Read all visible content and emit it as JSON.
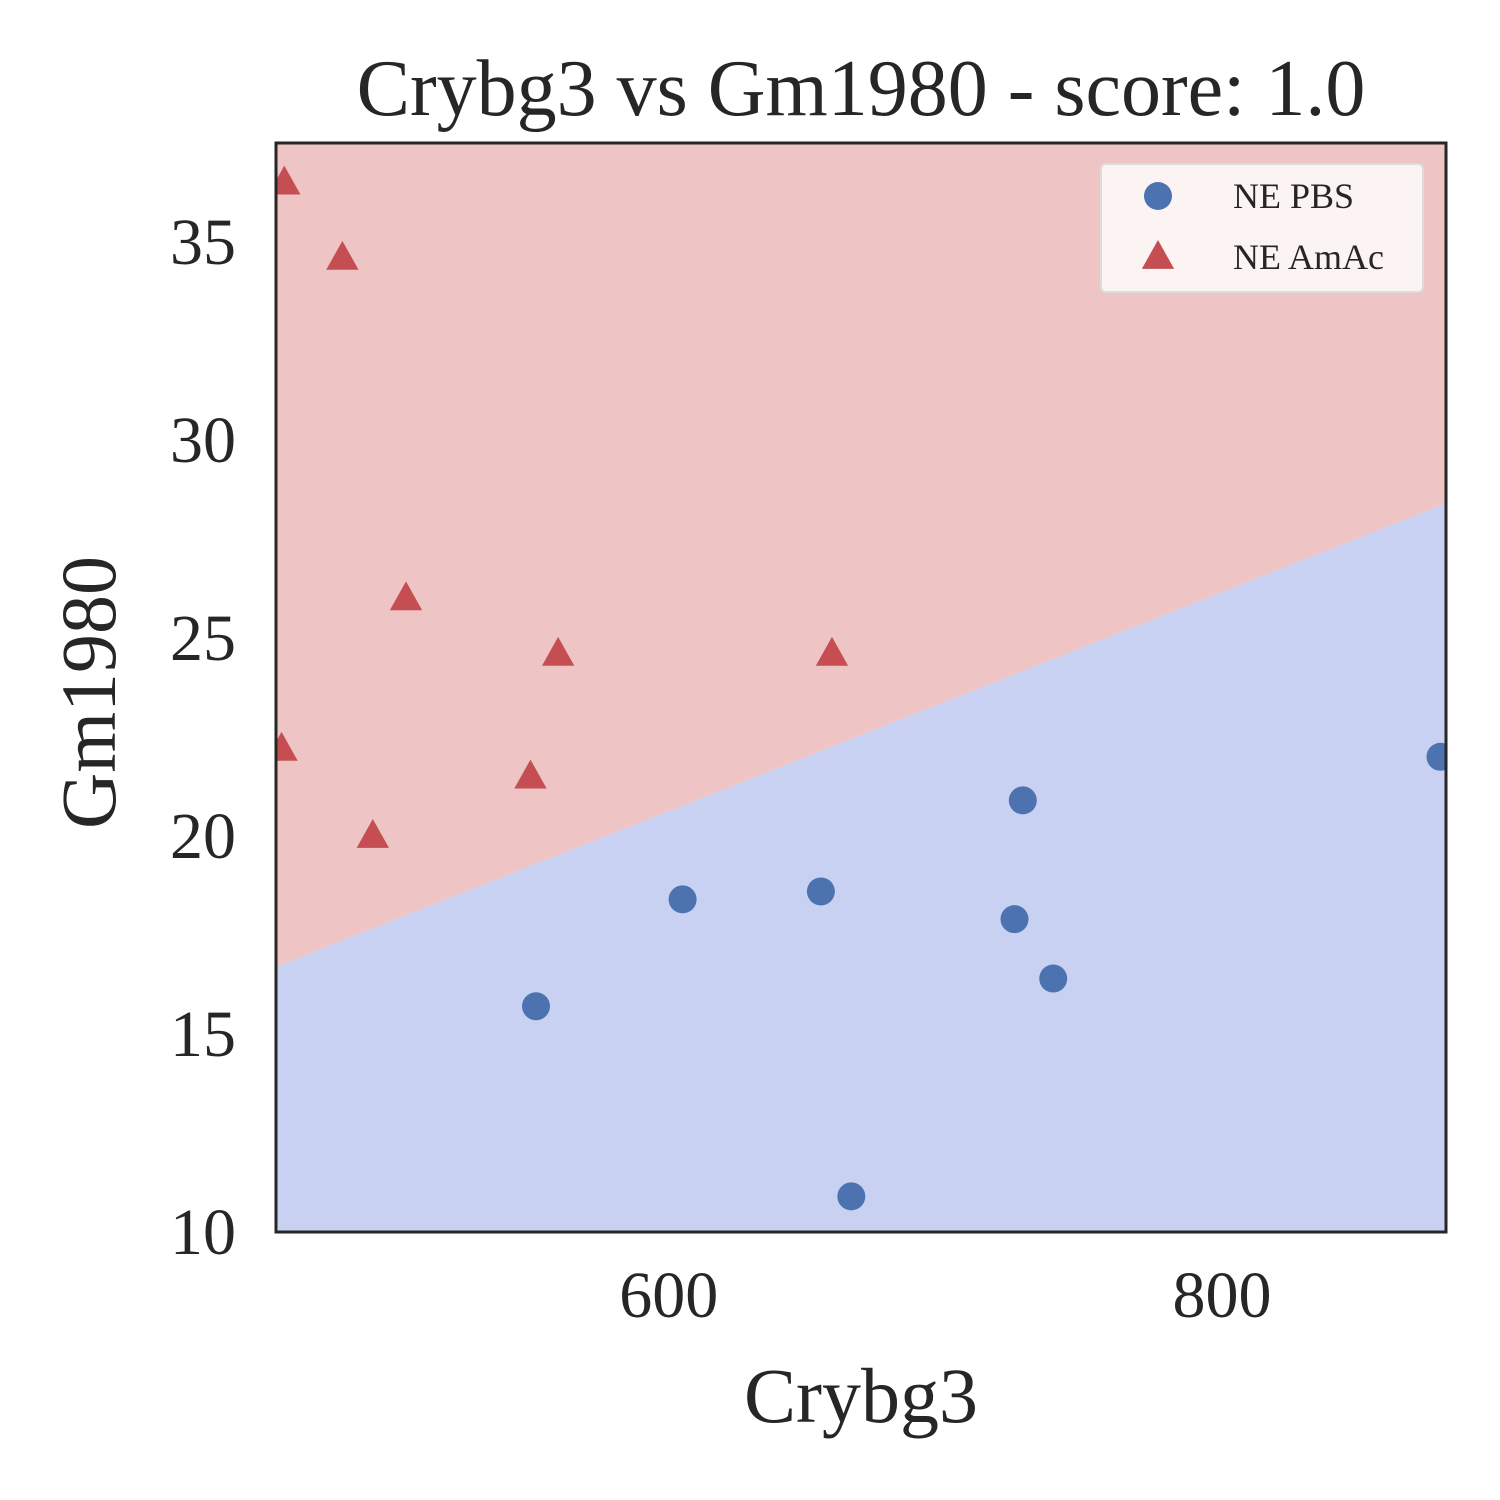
{
  "chart_data": {
    "type": "scatter",
    "title": "Crybg3 vs Gm1980 - score: 1.0",
    "xlabel": "Crybg3",
    "ylabel": "Gm1980",
    "xlim": [
      458,
      881
    ],
    "ylim": [
      10,
      37.5
    ],
    "xticks": [
      600,
      800
    ],
    "yticks": [
      10,
      15,
      20,
      25,
      30,
      35
    ],
    "grid": false,
    "legend_position": "top-right",
    "decision_boundary": {
      "x": [
        458,
        881
      ],
      "y": [
        16.7,
        28.4
      ],
      "above_class": "NE AmAc",
      "below_class": "NE PBS"
    },
    "region_colors": {
      "above": "#eec4c4",
      "below": "#c9d1f2"
    },
    "series": [
      {
        "name": "NE PBS",
        "marker": "circle",
        "color": "#4c72b0",
        "points": [
          [
            552,
            15.7
          ],
          [
            605,
            18.4
          ],
          [
            655,
            18.6
          ],
          [
            666,
            10.9
          ],
          [
            725,
            17.9
          ],
          [
            728,
            20.9
          ],
          [
            739,
            16.4
          ],
          [
            879,
            22.0
          ]
        ]
      },
      {
        "name": "NE AmAc",
        "marker": "triangle",
        "color": "#c44e52",
        "points": [
          [
            461,
            36.5
          ],
          [
            482,
            34.6
          ],
          [
            493,
            20.0
          ],
          [
            505,
            26.0
          ],
          [
            550,
            21.5
          ],
          [
            560,
            24.6
          ],
          [
            659,
            24.6
          ],
          [
            460,
            22.2
          ]
        ]
      }
    ]
  }
}
